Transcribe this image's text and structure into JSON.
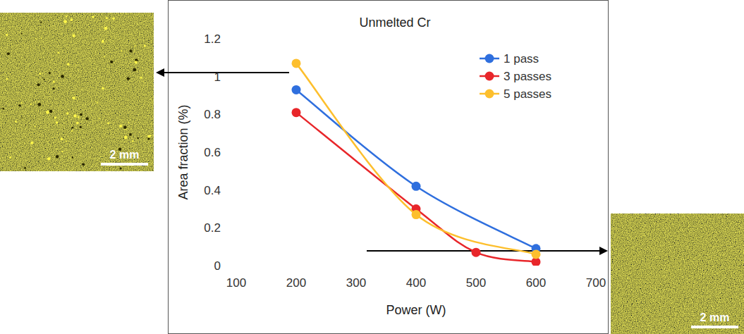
{
  "chart_data": {
    "type": "line",
    "title": "Unmelted Cr",
    "x_label": "Power (W)",
    "y_label": "Area fraction (%)",
    "series": [
      {
        "name": "1 pass",
        "color": "#2f6fde",
        "x": [
          200,
          400,
          600
        ],
        "values": [
          0.93,
          0.42,
          0.09
        ]
      },
      {
        "name": "3 passes",
        "color": "#e8262a",
        "x": [
          200,
          400,
          500,
          600
        ],
        "values": [
          0.81,
          0.3,
          0.07,
          0.02
        ]
      },
      {
        "name": "5 passes",
        "color": "#fdbf2d",
        "x": [
          200,
          400,
          600
        ],
        "values": [
          1.07,
          0.27,
          0.06
        ]
      }
    ],
    "xlim": [
      100,
      700
    ],
    "xticks": [
      100,
      200,
      300,
      400,
      500,
      600,
      700
    ],
    "ylim": [
      0,
      1.2
    ],
    "yticks": [
      0,
      0.2,
      0.4,
      0.6,
      0.8,
      1,
      1.2
    ],
    "grid": false,
    "legend": "upper right",
    "marker": "circle",
    "line_style": "smooth",
    "annotations": [
      "2 mm",
      "2 mm"
    ]
  }
}
